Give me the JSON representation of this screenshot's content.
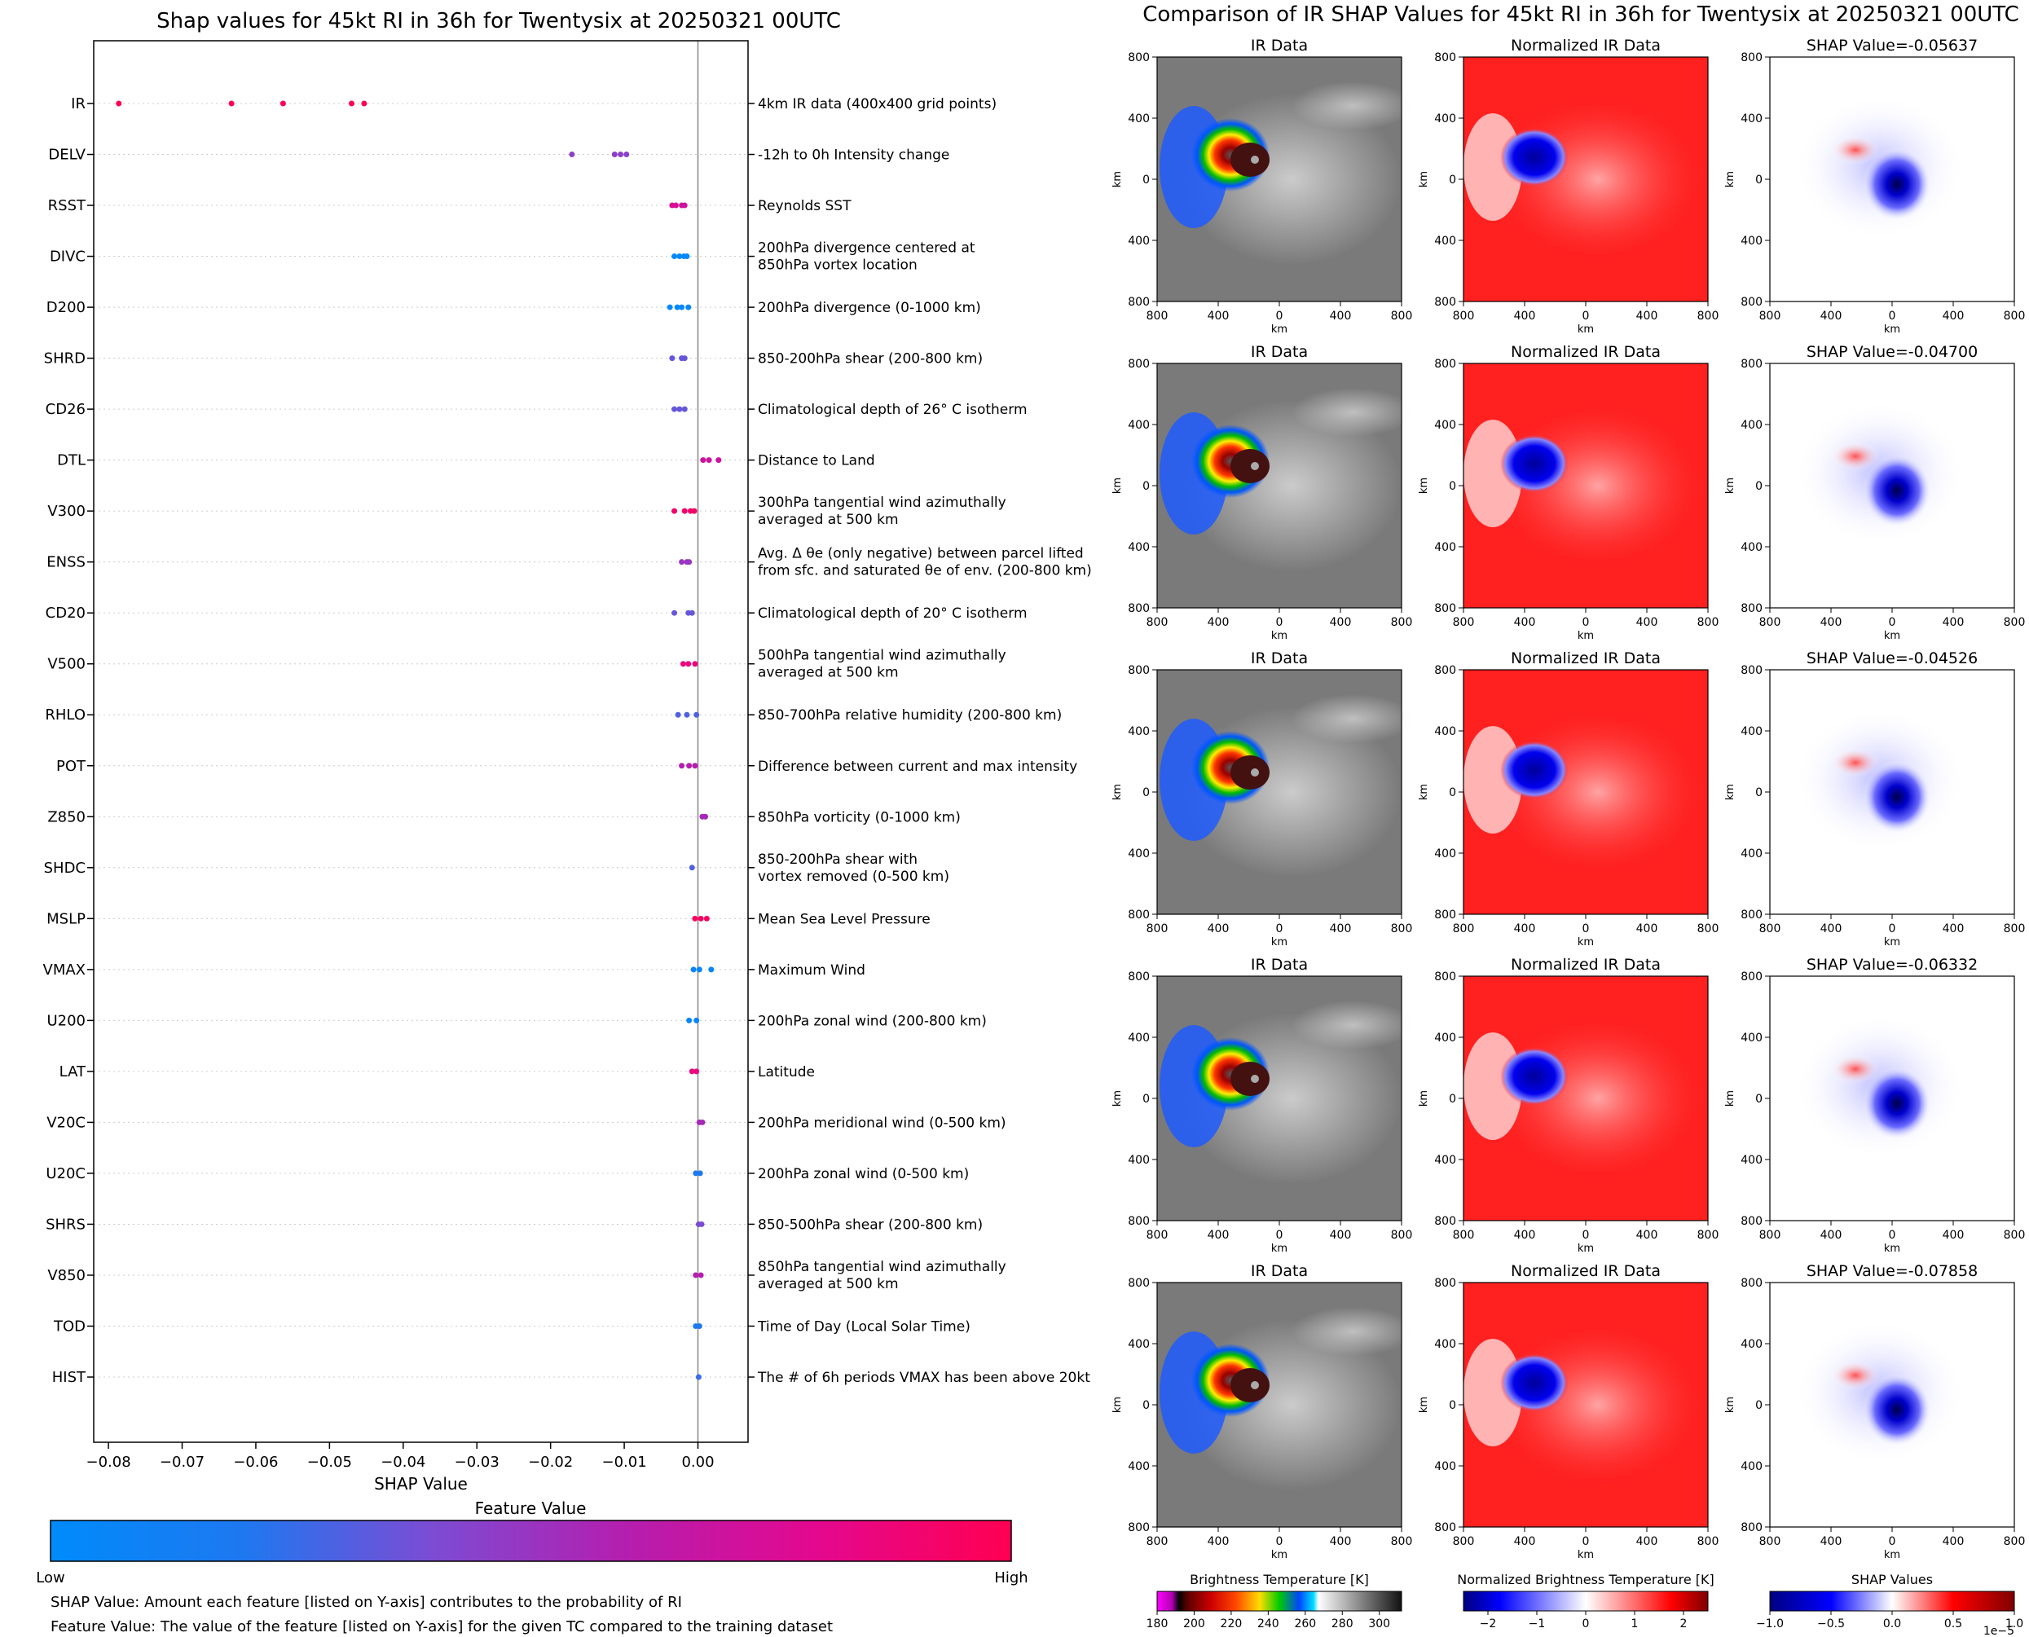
{
  "left_title": "Shap values for 45kt RI in 36h for Twentysix at 20250321 00UTC",
  "right_title": "Comparison of IR SHAP Values for 45kt RI in 36h for Twentysix at 20250321 00UTC",
  "chart_data": [
    {
      "type": "scatter",
      "title": "Shap values for 45kt RI in 36h for Twentysix at 20250321 00UTC",
      "xlabel": "SHAP Value",
      "xlim": [
        -0.082,
        0.0068
      ],
      "xticks": [
        "−0.08",
        "−0.07",
        "−0.06",
        "−0.05",
        "−0.04",
        "−0.03",
        "−0.02",
        "−0.01",
        "0.00"
      ],
      "xtick_values": [
        -0.08,
        -0.07,
        -0.06,
        -0.05,
        -0.04,
        -0.03,
        -0.02,
        -0.01,
        0.0
      ],
      "grid": "horizontal dotted",
      "features": [
        {
          "name": "IR",
          "desc": [
            "4km IR data (400x400 grid points)"
          ],
          "points": [
            [
              -0.0786,
              1
            ],
            [
              -0.0633,
              1
            ],
            [
              -0.0563,
              1
            ],
            [
              -0.047,
              1
            ],
            [
              -0.0453,
              1
            ]
          ]
        },
        {
          "name": "DELV",
          "desc": [
            "-12h to 0h Intensity change"
          ],
          "points": [
            [
              -0.0171,
              0.45
            ],
            [
              -0.0113,
              0.45
            ],
            [
              -0.0105,
              0.45
            ],
            [
              -0.0097,
              0.45
            ]
          ]
        },
        {
          "name": "RSST",
          "desc": [
            "Reynolds SST"
          ],
          "points": [
            [
              -0.0035,
              0.75
            ],
            [
              -0.003,
              0.75
            ],
            [
              -0.0022,
              0.7
            ],
            [
              -0.0018,
              0.7
            ]
          ]
        },
        {
          "name": "DIVC",
          "desc": [
            "200hPa divergence centered at",
            "850hPa vortex location"
          ],
          "points": [
            [
              -0.0032,
              0.02
            ],
            [
              -0.0025,
              0.02
            ],
            [
              -0.0019,
              0.02
            ],
            [
              -0.0015,
              0.02
            ]
          ]
        },
        {
          "name": "D200",
          "desc": [
            "200hPa divergence (0-1000 km)"
          ],
          "points": [
            [
              -0.0038,
              0.02
            ],
            [
              -0.0028,
              0.02
            ],
            [
              -0.0022,
              0.02
            ],
            [
              -0.0013,
              0.02
            ]
          ]
        },
        {
          "name": "SHRD",
          "desc": [
            "850-200hPa shear (200-800 km)"
          ],
          "points": [
            [
              -0.0035,
              0.35
            ],
            [
              -0.0022,
              0.35
            ],
            [
              -0.0018,
              0.35
            ]
          ]
        },
        {
          "name": "CD26",
          "desc": [
            "Climatological depth of 26° C isotherm"
          ],
          "points": [
            [
              -0.0032,
              0.35
            ],
            [
              -0.0025,
              0.35
            ],
            [
              -0.0018,
              0.35
            ]
          ]
        },
        {
          "name": "DTL",
          "desc": [
            "Distance to Land"
          ],
          "points": [
            [
              0.0007,
              0.7
            ],
            [
              0.0015,
              0.7
            ],
            [
              0.0028,
              0.7
            ]
          ]
        },
        {
          "name": "V300",
          "desc": [
            "300hPa tangential wind azimuthally",
            "averaged at 500 km"
          ],
          "points": [
            [
              -0.0032,
              0.92
            ],
            [
              -0.0018,
              0.92
            ],
            [
              -0.001,
              0.92
            ],
            [
              -0.0005,
              0.92
            ]
          ]
        },
        {
          "name": "ENSS",
          "desc": [
            "Avg. Δ θe (only negative) between parcel lifted",
            "from sfc. and saturated θe of env. (200-800 km)"
          ],
          "points": [
            [
              -0.0022,
              0.5
            ],
            [
              -0.0015,
              0.5
            ],
            [
              -0.0012,
              0.5
            ]
          ]
        },
        {
          "name": "CD20",
          "desc": [
            "Climatological depth of 20° C isotherm"
          ],
          "points": [
            [
              -0.0032,
              0.35
            ],
            [
              -0.0013,
              0.35
            ],
            [
              -0.0008,
              0.35
            ]
          ]
        },
        {
          "name": "V500",
          "desc": [
            "500hPa tangential wind azimuthally",
            "averaged at 500 km"
          ],
          "points": [
            [
              -0.002,
              0.85
            ],
            [
              -0.0013,
              0.85
            ],
            [
              -0.0004,
              0.85
            ]
          ]
        },
        {
          "name": "RHLO",
          "desc": [
            "850-700hPa relative humidity (200-800 km)"
          ],
          "points": [
            [
              -0.0027,
              0.3
            ],
            [
              -0.0015,
              0.3
            ],
            [
              -0.0002,
              0.3
            ]
          ]
        },
        {
          "name": "POT",
          "desc": [
            "Difference between current and max intensity"
          ],
          "points": [
            [
              -0.0022,
              0.6
            ],
            [
              -0.0012,
              0.6
            ],
            [
              -0.0004,
              0.6
            ]
          ]
        },
        {
          "name": "Z850",
          "desc": [
            "850hPa vorticity (0-1000 km)"
          ],
          "points": [
            [
              0.0006,
              0.55
            ],
            [
              0.001,
              0.55
            ]
          ]
        },
        {
          "name": "SHDC",
          "desc": [
            "850-200hPa shear with",
            "vortex removed (0-500 km)"
          ],
          "points": [
            [
              -0.0008,
              0.3
            ]
          ]
        },
        {
          "name": "MSLP",
          "desc": [
            "Mean Sea Level Pressure"
          ],
          "points": [
            [
              -0.0004,
              0.95
            ],
            [
              0.0004,
              0.95
            ],
            [
              0.0012,
              0.95
            ]
          ]
        },
        {
          "name": "VMAX",
          "desc": [
            "Maximum Wind"
          ],
          "points": [
            [
              -0.0006,
              0.05
            ],
            [
              0.0002,
              0.05
            ],
            [
              0.0018,
              0.05
            ]
          ]
        },
        {
          "name": "U200",
          "desc": [
            "200hPa zonal wind (200-800 km)"
          ],
          "points": [
            [
              -0.0012,
              0.05
            ],
            [
              -0.0002,
              0.05
            ]
          ]
        },
        {
          "name": "LAT",
          "desc": [
            "Latitude"
          ],
          "points": [
            [
              -0.0008,
              0.85
            ],
            [
              -0.0002,
              0.85
            ]
          ]
        },
        {
          "name": "V20C",
          "desc": [
            "200hPa meridional wind (0-500 km)"
          ],
          "points": [
            [
              0.0002,
              0.55
            ],
            [
              0.0006,
              0.55
            ]
          ]
        },
        {
          "name": "U20C",
          "desc": [
            "200hPa zonal wind (0-500 km)"
          ],
          "points": [
            [
              -0.0003,
              0.2
            ],
            [
              0.0003,
              0.2
            ]
          ]
        },
        {
          "name": "SHRS",
          "desc": [
            "850-500hPa shear (200-800 km)"
          ],
          "points": [
            [
              0.0001,
              0.4
            ],
            [
              0.0005,
              0.4
            ]
          ]
        },
        {
          "name": "V850",
          "desc": [
            "850hPa tangential wind azimuthally",
            "averaged at 500 km"
          ],
          "points": [
            [
              -0.0003,
              0.6
            ],
            [
              0.0004,
              0.6
            ]
          ]
        },
        {
          "name": "TOD",
          "desc": [
            "Time of Day (Local Solar Time)"
          ],
          "points": [
            [
              -0.0003,
              0.2
            ],
            [
              0.0002,
              0.2
            ]
          ]
        },
        {
          "name": "HIST",
          "desc": [
            "The # of 6h periods VMAX has been above 20kt"
          ],
          "points": [
            [
              0.0001,
              0.25
            ]
          ]
        }
      ]
    },
    {
      "type": "heatmap",
      "panels": [
        {
          "row": 1,
          "titles": [
            "IR Data",
            "Normalized IR Data",
            "SHAP Value=-0.05637"
          ]
        },
        {
          "row": 2,
          "titles": [
            "IR Data",
            "Normalized IR Data",
            "SHAP Value=-0.04700"
          ]
        },
        {
          "row": 3,
          "titles": [
            "IR Data",
            "Normalized IR Data",
            "SHAP Value=-0.04526"
          ]
        },
        {
          "row": 4,
          "titles": [
            "IR Data",
            "Normalized IR Data",
            "SHAP Value=-0.06332"
          ]
        },
        {
          "row": 5,
          "titles": [
            "IR Data",
            "Normalized IR Data",
            "SHAP Value=-0.07858"
          ]
        }
      ],
      "axis_ticks": [
        "800",
        "400",
        "0",
        "400",
        "800"
      ],
      "axis_label": "km",
      "colorbars": [
        {
          "label": "Brightness Temperature [K]",
          "ticks": [
            "180",
            "200",
            "220",
            "240",
            "260",
            "280",
            "300"
          ]
        },
        {
          "label": "Normalized Brightness Temperature [K]",
          "ticks": [
            "−2",
            "−1",
            "0",
            "1",
            "2"
          ]
        },
        {
          "label": "SHAP Values",
          "ticks": [
            "−1.0",
            "−0.5",
            "0.0",
            "0.5",
            "1.0"
          ],
          "offset": "1e−5"
        }
      ]
    }
  ],
  "feature_colorbar": {
    "title": "Feature Value",
    "low": "Low",
    "high": "High"
  },
  "notes": [
    "SHAP Value: Amount each feature [listed on Y-axis] contributes to the probability of RI",
    "Feature Value: The value of the feature [listed on Y-axis] for the given TC compared to the training dataset"
  ],
  "colors": {
    "low": "#008bfb",
    "high": "#ff0052"
  }
}
